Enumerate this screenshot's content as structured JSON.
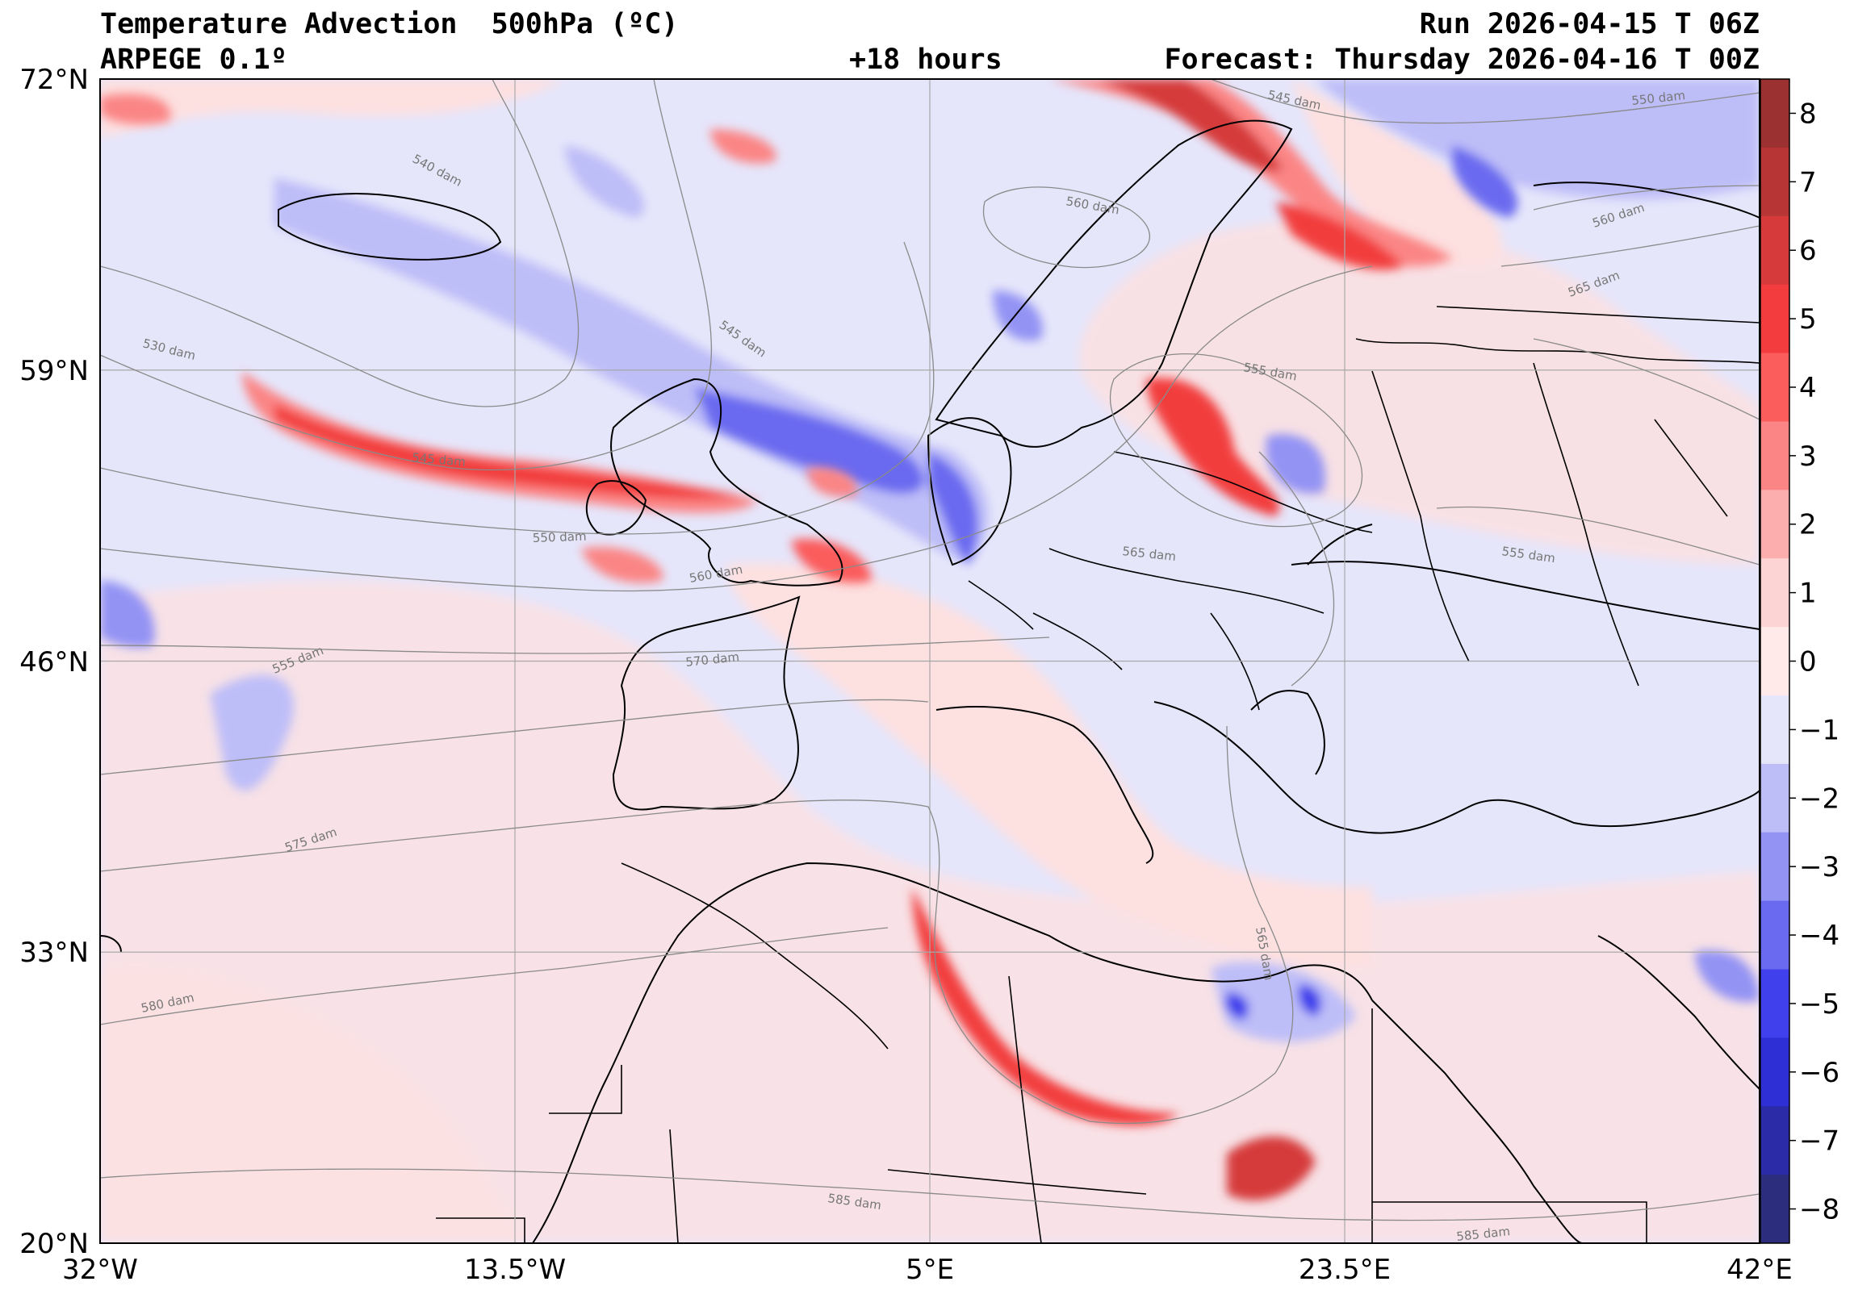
{
  "header": {
    "title": "Temperature Advection  500hPa (ºC)",
    "model": "ARPEGE 0.1º",
    "lead": "+18 hours",
    "run": "Run 2026-04-15 T 06Z",
    "forecast": "Forecast: Thursday 2026-04-16 T 00Z"
  },
  "axes": {
    "lat_ticks": [
      "72°N",
      "59°N",
      "46°N",
      "33°N",
      "20°N"
    ],
    "lon_ticks": [
      "32°W",
      "13.5°W",
      "5°E",
      "23.5°E",
      "42°E"
    ]
  },
  "colorbar": {
    "ticks": [
      "8",
      "7",
      "6",
      "5",
      "4",
      "3",
      "2",
      "1",
      "0",
      "−1",
      "−2",
      "−3",
      "−4",
      "−5",
      "−6",
      "−7",
      "−8"
    ],
    "colors": [
      "#9c3132",
      "#b83536",
      "#d63a3b",
      "#f23c3d",
      "#fb5c5c",
      "#fb8585",
      "#fcadae",
      "#fdd4d4",
      "#ffe9e9",
      "#e6e6fb",
      "#bdbdf8",
      "#9393f4",
      "#6a6af0",
      "#4040ec",
      "#2f2fd6",
      "#2b2ba8",
      "#2d2d7e"
    ]
  },
  "contours": {
    "labels": [
      "540 dam",
      "545 dam",
      "530 dam",
      "545 dam",
      "550 dam",
      "560 dam",
      "555 dam",
      "570 dam",
      "575 dam",
      "580 dam",
      "585 dam",
      "545 dam",
      "550 dam",
      "560 dam",
      "560 dam",
      "565 dam",
      "555 dam",
      "565 dam",
      "555 dam",
      "565 dam",
      "585 dam"
    ]
  },
  "palette": {
    "background_warm": "#fde0e0",
    "background_cool": "#e6e6fb",
    "contour": "#8a8a8a",
    "coast": "#000000",
    "grid": "#a8a8a8"
  }
}
